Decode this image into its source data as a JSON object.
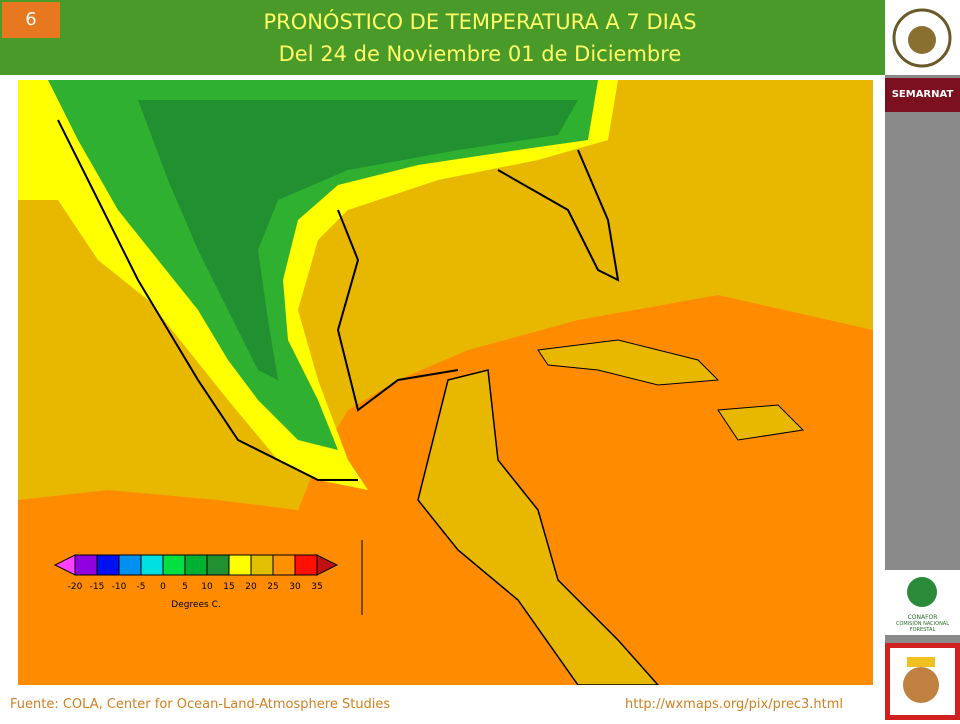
{
  "slide_number": "6",
  "header": {
    "title": "PRONÓSTICO DE TEMPERATURA A 7 DIAS",
    "subtitle": "Del 24 de Noviembre 01 de Diciembre"
  },
  "legend": {
    "colors": [
      "#ff40ff",
      "#9000e0",
      "#0010f0",
      "#0090f0",
      "#00e0e0",
      "#00e040",
      "#00b030",
      "#209030",
      "#ffff00",
      "#e0c000",
      "#ff9000",
      "#ff1000",
      "#c01010"
    ],
    "labels": [
      "-20",
      "-15",
      "-10",
      "-5",
      "0",
      "5",
      "10",
      "15",
      "20",
      "25",
      "30",
      "35"
    ],
    "unit": "Degrees C."
  },
  "footer": {
    "source": "Fuente: COLA, Center  for Ocean-Land-Atmosphere Studies",
    "url": "http://wxmaps.org/pix/prec3.html"
  },
  "sidebar": {
    "logo1": "SEMARNAT",
    "logo2": "CONAFOR",
    "logo2_caption": "COMISIÓN NACIONAL FORESTAL"
  }
}
